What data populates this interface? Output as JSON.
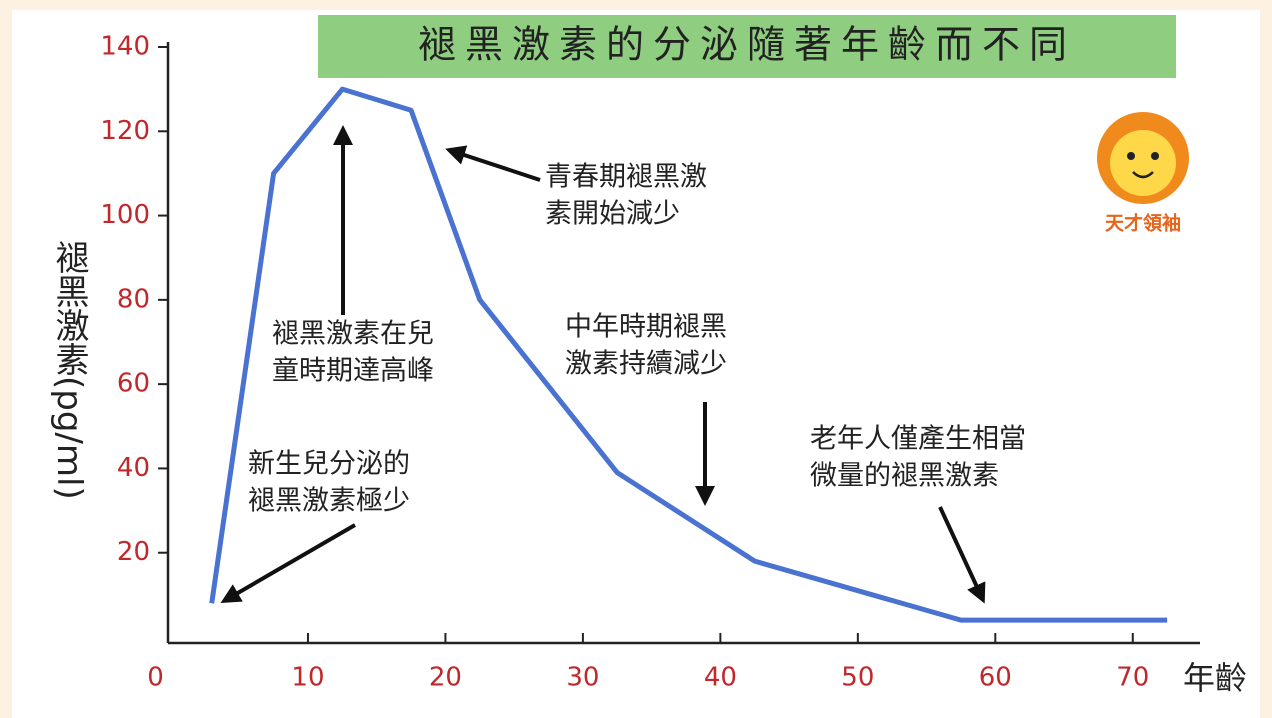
{
  "chart_data": {
    "type": "line",
    "title": "褪黑激素的分泌隨著年齡而不同",
    "y_label": "褪黑激素(pg/ml)",
    "x_label": "年齡",
    "x": [
      3,
      7.5,
      12.5,
      17.5,
      22.5,
      32.5,
      42.5,
      57.5,
      72.5
    ],
    "values": [
      8,
      110,
      130,
      125,
      80,
      39,
      18,
      4,
      4
    ],
    "color": "#4a72d0",
    "xlim": [
      0,
      75
    ],
    "xticks": [
      0,
      10,
      20,
      30,
      40,
      50,
      60,
      70
    ],
    "ylim": [
      0,
      140
    ],
    "yticks": [
      20,
      40,
      60,
      80,
      100,
      120,
      140
    ],
    "annotations": [
      [
        "新生兒分泌的",
        "褪黑激素極少"
      ],
      [
        "褪黑激素在兒",
        "童時期達高峰"
      ],
      [
        "青春期褪黑激",
        "素開始減少"
      ],
      [
        "中年時期褪黑",
        "激素持續減少"
      ],
      [
        "老年人僅產生相當",
        "微量的褪黑激素"
      ]
    ]
  },
  "logo_text": "天才領袖"
}
